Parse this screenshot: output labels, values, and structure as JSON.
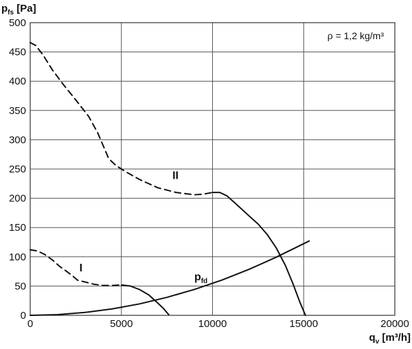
{
  "chart_data": {
    "type": "line",
    "xlabel": {
      "main": "q",
      "sub": "v",
      "unit": " [m³/h]"
    },
    "ylabel": {
      "main": "p",
      "sub": "fs",
      "unit": " [Pa]"
    },
    "xlim": [
      0,
      20000
    ],
    "ylim": [
      0,
      500
    ],
    "xticks": [
      0,
      5000,
      10000,
      15000,
      20000
    ],
    "yticks": [
      0,
      50,
      100,
      150,
      200,
      250,
      300,
      350,
      400,
      450,
      500
    ],
    "grid": true,
    "annotation": "ρ = 1,2 kg/m³",
    "series": [
      {
        "name": "I",
        "style": "dashed",
        "x": [
          0,
          400,
          800,
          1200,
          1600,
          2000,
          2300,
          2600,
          3000,
          3500,
          4000,
          4500,
          5000
        ],
        "y": [
          112,
          110,
          104,
          95,
          84,
          75,
          68,
          60,
          57,
          53,
          51,
          51,
          52
        ]
      },
      {
        "name": "I",
        "style": "solid",
        "x": [
          5000,
          5500,
          6000,
          6500,
          7000,
          7300,
          7600
        ],
        "y": [
          52,
          50,
          44,
          35,
          21,
          12,
          1
        ]
      },
      {
        "name": "II",
        "style": "dashed",
        "x": [
          0,
          300,
          700,
          1200,
          1800,
          2500,
          3200,
          3700,
          4000,
          4300,
          4700,
          5200,
          6000,
          7000,
          8000,
          9000,
          9500,
          10000
        ],
        "y": [
          466,
          461,
          445,
          420,
          395,
          368,
          340,
          312,
          290,
          268,
          256,
          246,
          232,
          218,
          210,
          206,
          207,
          210
        ]
      },
      {
        "name": "II",
        "style": "solid",
        "x": [
          10000,
          10400,
          10800,
          11300,
          12000,
          12500,
          13000,
          13500,
          14000,
          14400,
          14800,
          15100
        ],
        "y": [
          210,
          210,
          204,
          190,
          170,
          156,
          138,
          115,
          85,
          55,
          22,
          0
        ]
      },
      {
        "name": "p",
        "name_sub": "fd",
        "style": "solid",
        "x": [
          0,
          1500,
          3000,
          4500,
          6000,
          7500,
          9000,
          10500,
          12000,
          13500,
          15300
        ],
        "y": [
          0,
          1.2,
          4.9,
          11,
          19.6,
          30.7,
          44.2,
          60.1,
          78.5,
          99.4,
          127
        ]
      }
    ],
    "curve_labels": [
      {
        "text": "I",
        "x": 2700,
        "y": 75
      },
      {
        "text": "II",
        "x": 7800,
        "y": 233
      },
      {
        "text": "p",
        "sub": "fd",
        "x": 9000,
        "y": 60
      }
    ]
  }
}
